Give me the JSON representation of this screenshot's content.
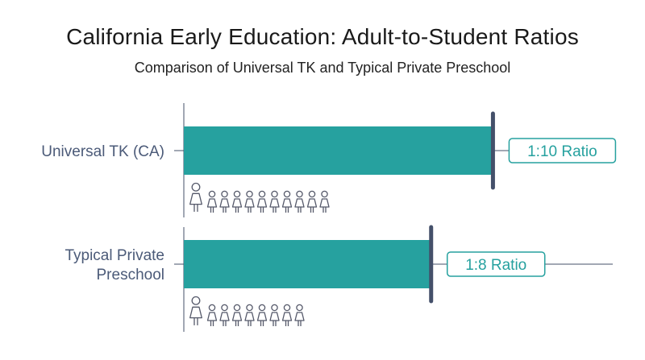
{
  "chart_data": {
    "type": "bar",
    "orientation": "horizontal",
    "title": "California Early Education: Adult-to-Student Ratios",
    "subtitle": "Comparison of Universal TK and Typical Private Preschool",
    "categories": [
      "Universal TK (CA)",
      "Typical Private Preschool"
    ],
    "category_lines": [
      [
        "Universal TK (CA)"
      ],
      [
        "Typical Private",
        "Preschool"
      ]
    ],
    "values": [
      10,
      8
    ],
    "data_labels": [
      "1:10 Ratio",
      "1:8 Ratio"
    ],
    "icons": [
      {
        "adults": 1,
        "students": 10
      },
      {
        "adults": 1,
        "students": 8
      }
    ],
    "xlim": [
      0,
      10.25
    ],
    "grid": false,
    "colors": {
      "bar": "#26a19f",
      "marker": "#44506a",
      "axis": "#44506a",
      "label_text": "#4b5a78",
      "data_label_text": "#26a19f",
      "data_label_border": "#26a19f",
      "icon_stroke": "#55596a"
    }
  }
}
